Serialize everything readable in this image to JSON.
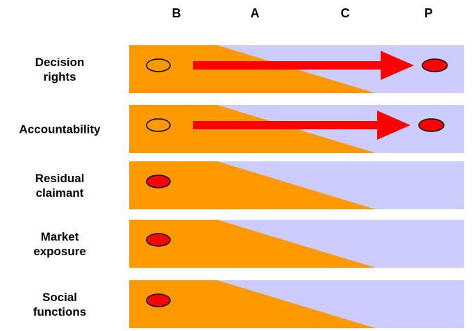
{
  "colors": {
    "orange": "#ff9900",
    "lavender": "#ccccff",
    "red": "#ff0000",
    "outline": "#000000",
    "text": "#000000"
  },
  "columns": [
    "B",
    "A",
    "C",
    "P"
  ],
  "rows": [
    {
      "label_lines": [
        "Decision",
        "rights"
      ],
      "marker": "hollow",
      "position": "B",
      "arrow_to": "P"
    },
    {
      "label_lines": [
        "Accountability"
      ],
      "marker": "hollow",
      "position": "B",
      "arrow_to": "P"
    },
    {
      "label_lines": [
        "Residual",
        "claimant"
      ],
      "marker": "filled",
      "position": "B",
      "arrow_to": null
    },
    {
      "label_lines": [
        "Market",
        "exposure"
      ],
      "marker": "filled",
      "position": "B",
      "arrow_to": null
    },
    {
      "label_lines": [
        "Social",
        "functions"
      ],
      "marker": "filled",
      "position": "B",
      "arrow_to": null
    }
  ]
}
